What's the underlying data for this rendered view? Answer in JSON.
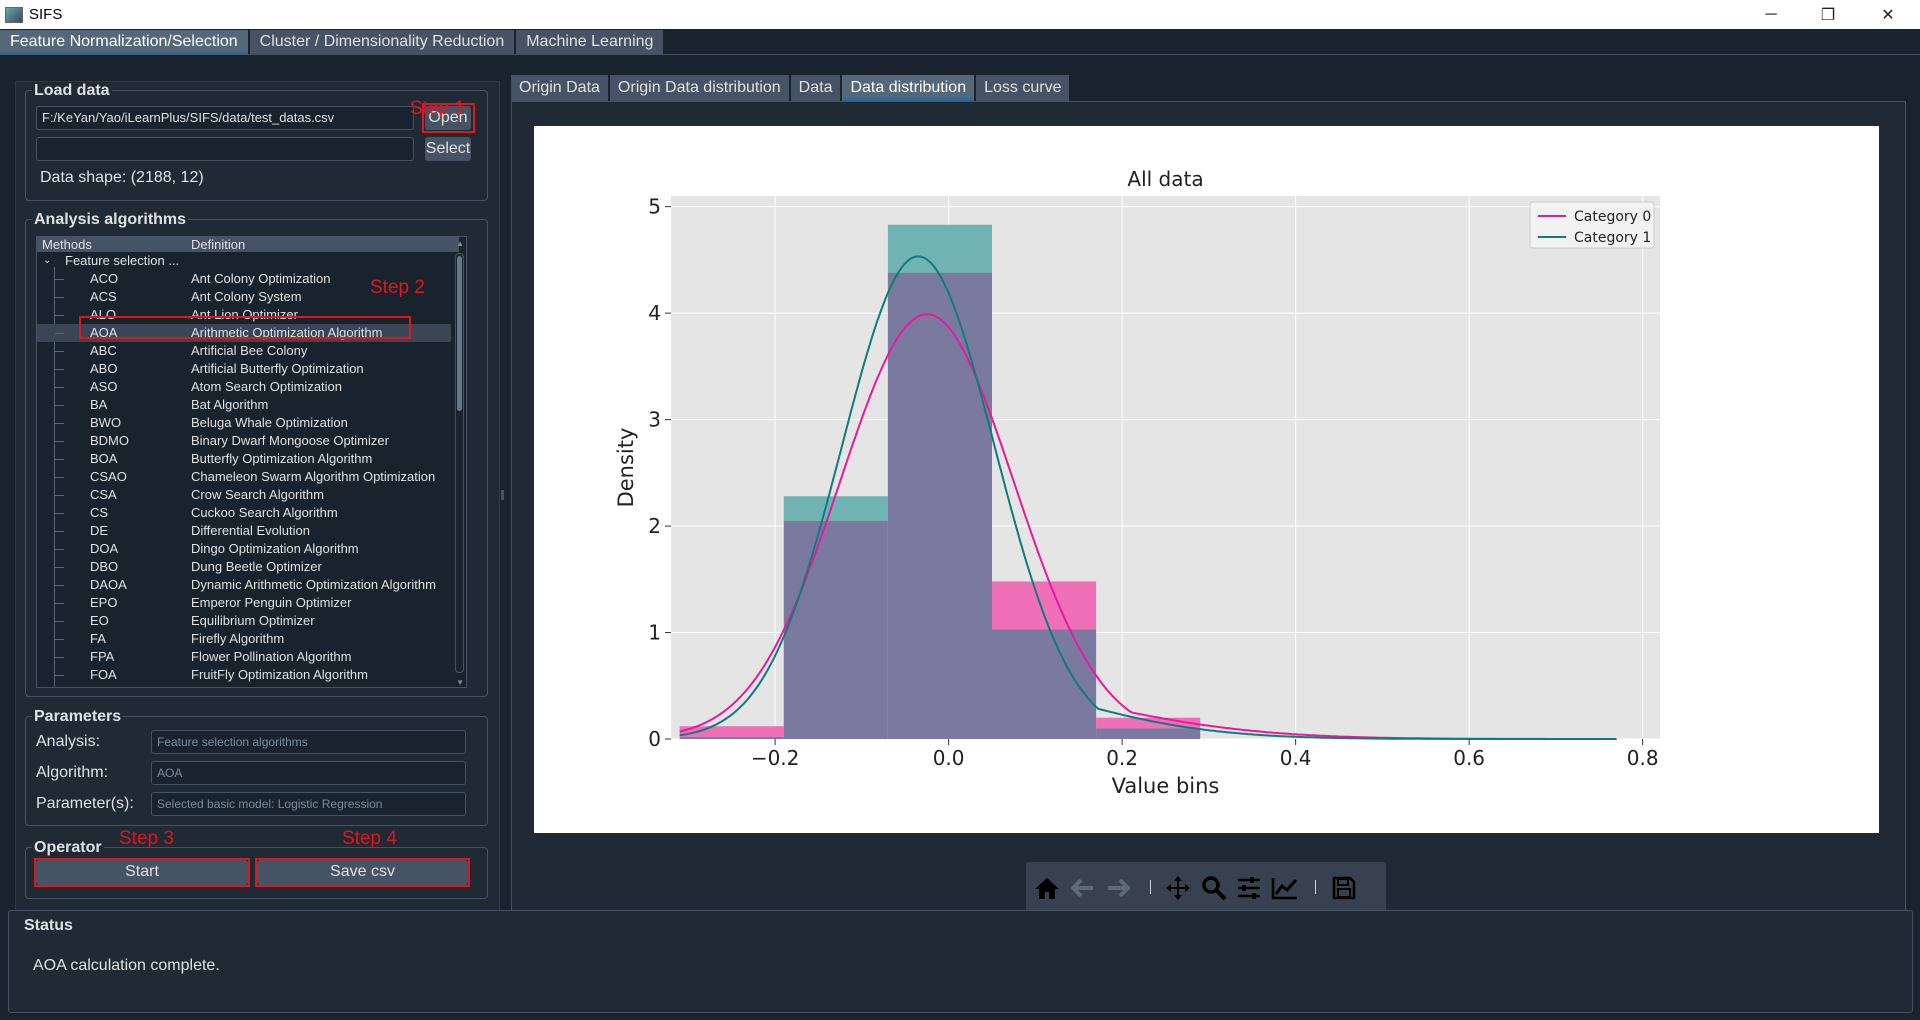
{
  "window": {
    "title": "SIFS",
    "minimize": "─",
    "maximize": "❐",
    "close": "✕"
  },
  "main_tabs": [
    "Feature Normalization/Selection",
    "Cluster / Dimensionality Reduction",
    "Machine Learning"
  ],
  "load_data": {
    "title": "Load data",
    "file_path": "F:/KeYan/Yao/iLearnPlus/SIFS/data/test_datas.csv",
    "open_label": "Open",
    "select_value": "",
    "select_label": "Select",
    "data_shape": "Data shape: (2188, 12)"
  },
  "steps": {
    "step1": "Step 1",
    "step2": "Step 2",
    "step3": "Step 3",
    "step4": "Step 4"
  },
  "analysis": {
    "title": "Analysis algorithms",
    "col_methods": "Methods",
    "col_definition": "Definition",
    "group_label": "Feature selection ...",
    "items": [
      {
        "code": "ACO",
        "def": "Ant Colony Optimization"
      },
      {
        "code": "ACS",
        "def": "Ant Colony System"
      },
      {
        "code": "ALO",
        "def": "Ant Lion Optimizer"
      },
      {
        "code": "AOA",
        "def": "Arithmetic Optimization Algorithm"
      },
      {
        "code": "ABC",
        "def": "Artificial Bee Colony"
      },
      {
        "code": "ABO",
        "def": "Artificial Butterfly Optimization"
      },
      {
        "code": "ASO",
        "def": "Atom Search Optimization"
      },
      {
        "code": "BA",
        "def": "Bat Algorithm"
      },
      {
        "code": "BWO",
        "def": "Beluga Whale Optimization"
      },
      {
        "code": "BDMO",
        "def": "Binary Dwarf Mongoose Optimizer"
      },
      {
        "code": "BOA",
        "def": "Butterfly Optimization Algorithm"
      },
      {
        "code": "CSAO",
        "def": "Chameleon Swarm Algorithm Optimization"
      },
      {
        "code": "CSA",
        "def": "Crow Search Algorithm"
      },
      {
        "code": "CS",
        "def": "Cuckoo Search Algorithm"
      },
      {
        "code": "DE",
        "def": "Differential Evolution"
      },
      {
        "code": "DOA",
        "def": "Dingo Optimization Algorithm"
      },
      {
        "code": "DBO",
        "def": "Dung Beetle Optimizer"
      },
      {
        "code": "DAOA",
        "def": "Dynamic Arithmetic Optimization Algorithm"
      },
      {
        "code": "EPO",
        "def": "Emperor Penguin Optimizer"
      },
      {
        "code": "EO",
        "def": "Equilibrium Optimizer"
      },
      {
        "code": "FA",
        "def": "Firefly Algorithm"
      },
      {
        "code": "FPA",
        "def": "Flower Pollination Algorithm"
      },
      {
        "code": "FOA",
        "def": "FruitFly Optimization Algorithm"
      }
    ]
  },
  "parameters": {
    "title": "Parameters",
    "analysis_label": "Analysis:",
    "analysis_value": "Feature selection algorithms",
    "algorithm_label": "Algorithm:",
    "algorithm_value": "AOA",
    "params_label": "Parameter(s):",
    "params_value": "Selected basic model: Logistic Regression"
  },
  "operator": {
    "title": "Operator",
    "start_label": "Start",
    "save_label": "Save csv"
  },
  "sub_tabs": [
    "Origin Data",
    "Origin Data distribution",
    "Data",
    "Data distribution",
    "Loss curve"
  ],
  "status": {
    "title": "Status",
    "message": "AOA calculation complete."
  },
  "colors": {
    "cat0": "#e8199b",
    "cat1": "#0f7c7c",
    "bar0": "#f06fb9",
    "bar1": "#6fb3b3",
    "overlap": "#7a7aa0"
  },
  "chart_data": {
    "type": "bar",
    "title": "All data",
    "xlabel": "Value bins",
    "ylabel": "Density",
    "xlim": [
      -0.32,
      0.82
    ],
    "ylim": [
      0,
      5.1
    ],
    "xticks": [
      -0.2,
      0.0,
      0.2,
      0.4,
      0.6,
      0.8
    ],
    "xtick_labels": [
      "−0.2",
      "0.0",
      "0.2",
      "0.4",
      "0.6",
      "0.8"
    ],
    "yticks": [
      0,
      1,
      2,
      3,
      4,
      5
    ],
    "grid": true,
    "legend_position": "top-right",
    "bin_edges": [
      -0.31,
      -0.19,
      -0.07,
      0.05,
      0.17,
      0.29
    ],
    "series": [
      {
        "name": "Category 0",
        "values": [
          0.12,
          2.05,
          4.38,
          1.48,
          0.2
        ],
        "kde": {
          "mean": -0.025,
          "sd": 0.1
        }
      },
      {
        "name": "Category 1",
        "values": [
          0.02,
          2.28,
          4.83,
          1.03,
          0.1
        ],
        "kde": {
          "mean": -0.035,
          "sd": 0.088
        }
      }
    ]
  }
}
